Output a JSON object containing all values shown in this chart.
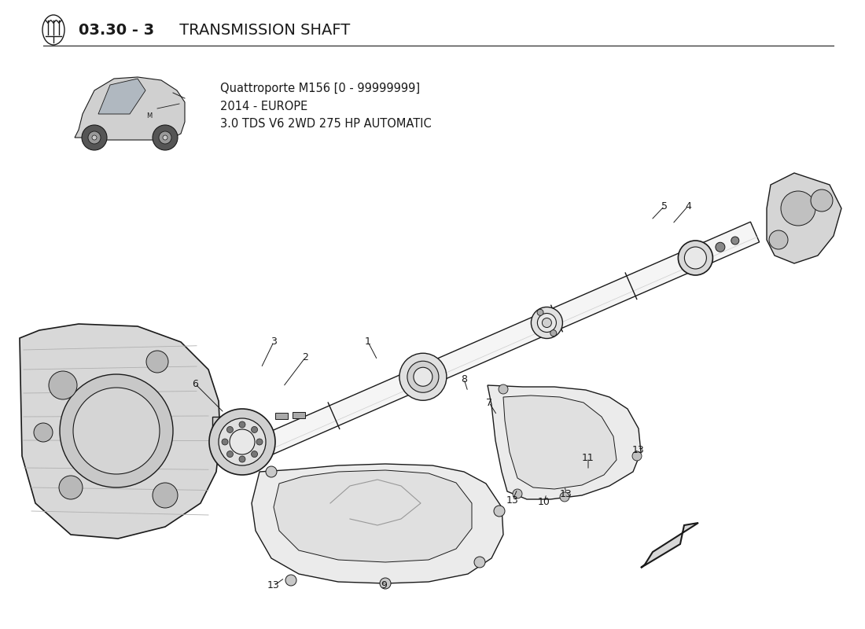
{
  "title_bold": "03.30 - 3",
  "title_normal": " TRANSMISSION SHAFT",
  "subtitle_line1": "Quattroporte M156 [0 - 99999999]",
  "subtitle_line2": "2014 - EUROPE",
  "subtitle_line3": "3.0 TDS V6 2WD 275 HP AUTOMATIC",
  "bg_color": "#ffffff",
  "line_color": "#1a1a1a",
  "shaft_color": "#f0f0f0",
  "part_color": "#e8e8e8",
  "dark_part_color": "#c8c8c8"
}
